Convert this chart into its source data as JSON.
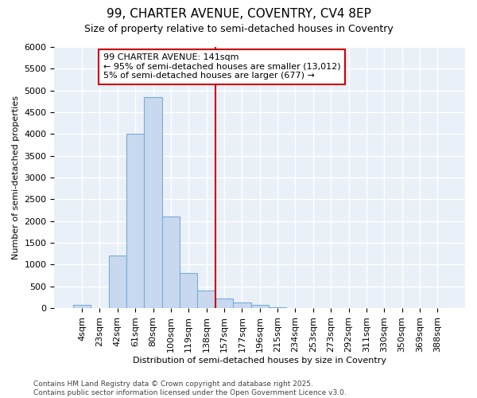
{
  "title_line1": "99, CHARTER AVENUE, COVENTRY, CV4 8EP",
  "title_line2": "Size of property relative to semi-detached houses in Coventry",
  "xlabel": "Distribution of semi-detached houses by size in Coventry",
  "ylabel": "Number of semi-detached properties",
  "bin_labels": [
    "4sqm",
    "23sqm",
    "42sqm",
    "61sqm",
    "80sqm",
    "100sqm",
    "119sqm",
    "138sqm",
    "157sqm",
    "177sqm",
    "196sqm",
    "215sqm",
    "234sqm",
    "253sqm",
    "273sqm",
    "292sqm",
    "311sqm",
    "330sqm",
    "350sqm",
    "369sqm",
    "388sqm"
  ],
  "bar_values": [
    75,
    0,
    1200,
    4000,
    4850,
    2100,
    800,
    400,
    230,
    130,
    75,
    20,
    5,
    2,
    0,
    0,
    0,
    0,
    0,
    0,
    0
  ],
  "bar_color": "#c8d9ef",
  "bar_edge_color": "#7aadd4",
  "vline_x_index": 7,
  "vline_color": "#cc0000",
  "annotation_title": "99 CHARTER AVENUE: 141sqm",
  "annotation_line1": "← 95% of semi-detached houses are smaller (13,012)",
  "annotation_line2": "5% of semi-detached houses are larger (677) →",
  "annotation_box_color": "#cc0000",
  "ylim": [
    0,
    6000
  ],
  "yticks": [
    0,
    500,
    1000,
    1500,
    2000,
    2500,
    3000,
    3500,
    4000,
    4500,
    5000,
    5500,
    6000
  ],
  "footer_line1": "Contains HM Land Registry data © Crown copyright and database right 2025.",
  "footer_line2": "Contains public sector information licensed under the Open Government Licence v3.0.",
  "background_color": "#eaf0f8",
  "grid_color": "#ffffff",
  "fig_bg_color": "#ffffff",
  "title_fontsize": 11,
  "subtitle_fontsize": 9,
  "xlabel_fontsize": 8,
  "ylabel_fontsize": 8,
  "tick_fontsize": 8,
  "footer_fontsize": 6.5,
  "annot_fontsize": 8
}
